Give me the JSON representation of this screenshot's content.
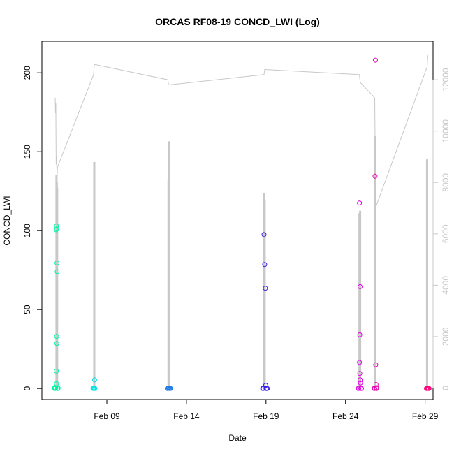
{
  "chart_data": {
    "type": "scatter",
    "title": "ORCAS RF08-19 CONCD_LWI (Log)",
    "xlabel": "Date",
    "ylabel": "CONCD_LWI",
    "xlim": [
      "2018-02-04T22:00",
      "2018-03-01T12:00"
    ],
    "ylim": [
      -7,
      220
    ],
    "y2lim": [
      -450,
      13500
    ],
    "grid": false,
    "legend": "none",
    "x_ticks": [
      {
        "date": "2018-02-09",
        "label": "Feb 09"
      },
      {
        "date": "2018-02-14",
        "label": "Feb 14"
      },
      {
        "date": "2018-02-19",
        "label": "Feb 19"
      },
      {
        "date": "2018-02-24",
        "label": "Feb 24"
      },
      {
        "date": "2018-02-29",
        "label": "Feb 29"
      }
    ],
    "y_ticks": [
      0,
      50,
      100,
      150,
      200
    ],
    "y2_ticks": [
      0,
      2000,
      4000,
      6000,
      8000,
      10000,
      12000
    ],
    "secondary_color": "#c8c8c8",
    "flights": [
      {
        "color": "#00f5a0",
        "points": [
          [
            "2018-02-05T16:30",
            0
          ],
          [
            "2018-02-05T17:00",
            0.5
          ],
          [
            "2018-02-05T18:00",
            0
          ],
          [
            "2018-02-05T19:00",
            0.3
          ],
          [
            "2018-02-05T19:30",
            100.5
          ],
          [
            "2018-02-05T20:00",
            103
          ],
          [
            "2018-02-05T20:30",
            101
          ],
          [
            "2018-02-05T20:45",
            79.5
          ],
          [
            "2018-02-05T21:00",
            74
          ],
          [
            "2018-02-05T20:15",
            33
          ],
          [
            "2018-02-05T20:30",
            28.5
          ],
          [
            "2018-02-05T19:45",
            11
          ],
          [
            "2018-02-05T20:00",
            3
          ],
          [
            "2018-02-05T21:30",
            0
          ],
          [
            "2018-02-05T22:00",
            0
          ],
          [
            "2018-02-05T22:30",
            0.2
          ]
        ]
      },
      {
        "color": "#00e0e6",
        "points": [
          [
            "2018-02-08T03:00",
            0
          ],
          [
            "2018-02-08T04:00",
            0
          ],
          [
            "2018-02-08T05:00",
            0.2
          ],
          [
            "2018-02-08T05:30",
            5.5
          ],
          [
            "2018-02-08T06:00",
            0
          ]
        ]
      },
      {
        "color": "#1e78e6",
        "points": [
          [
            "2018-02-12T19:00",
            0
          ],
          [
            "2018-02-12T20:00",
            0
          ],
          [
            "2018-02-12T21:00",
            0.3
          ],
          [
            "2018-02-12T22:00",
            0
          ],
          [
            "2018-02-12T23:00",
            0
          ],
          [
            "2018-02-13T00:00",
            0
          ]
        ]
      },
      {
        "color": "#3a1ee6",
        "points": [
          [
            "2018-02-18T19:00",
            0
          ],
          [
            "2018-02-18T20:00",
            0
          ],
          [
            "2018-02-18T21:00",
            97.5
          ],
          [
            "2018-02-18T22:00",
            78.5
          ],
          [
            "2018-02-18T23:00",
            63.5
          ],
          [
            "2018-02-18T23:30",
            2
          ],
          [
            "2018-02-19T00:00",
            0
          ],
          [
            "2018-02-19T01:00",
            0
          ],
          [
            "2018-02-19T02:00",
            0
          ]
        ]
      },
      {
        "color": "#e600e6",
        "points": [
          [
            "2018-02-24T19:00",
            0
          ],
          [
            "2018-02-24T20:00",
            0
          ],
          [
            "2018-02-24T21:00",
            117.5
          ],
          [
            "2018-02-24T22:00",
            64.5
          ],
          [
            "2018-02-24T21:30",
            34
          ],
          [
            "2018-02-24T21:00",
            16.5
          ],
          [
            "2018-02-24T21:30",
            9.5
          ],
          [
            "2018-02-24T22:00",
            5.5
          ],
          [
            "2018-02-24T22:30",
            3.5
          ],
          [
            "2018-02-24T23:00",
            0
          ],
          [
            "2018-02-25T00:00",
            0
          ]
        ]
      },
      {
        "color": "#e600b4",
        "points": [
          [
            "2018-02-25T19:00",
            0
          ],
          [
            "2018-02-25T20:00",
            0
          ],
          [
            "2018-02-25T20:30",
            134.5
          ],
          [
            "2018-02-25T21:00",
            208
          ],
          [
            "2018-02-25T21:30",
            15
          ],
          [
            "2018-02-25T22:00",
            2.5
          ],
          [
            "2018-02-25T22:30",
            0.5
          ],
          [
            "2018-02-25T23:00",
            0
          ]
        ]
      },
      {
        "color": "#ff0078",
        "points": [
          [
            "2018-03-01T02:00",
            0
          ],
          [
            "2018-03-01T03:00",
            0
          ],
          [
            "2018-03-01T04:00",
            0
          ],
          [
            "2018-03-01T05:00",
            0
          ],
          [
            "2018-03-01T06:00",
            0
          ]
        ]
      }
    ],
    "secondary_line": [
      [
        "2018-02-05T18:00",
        11300
      ],
      [
        "2018-02-05T18:30",
        10700
      ],
      [
        "2018-02-05T19:00",
        11100
      ],
      [
        "2018-02-05T19:30",
        8700
      ],
      [
        "2018-02-05T20:00",
        9000
      ],
      [
        "2018-02-05T21:00",
        8200
      ],
      [
        "2018-02-05T21:30",
        8600
      ],
      [
        "2018-02-08T04:00",
        12200
      ],
      [
        "2018-02-08T05:00",
        12600
      ],
      [
        "2018-02-12T20:00",
        12000
      ],
      [
        "2018-02-12T21:00",
        11800
      ],
      [
        "2018-02-12T22:00",
        11800
      ],
      [
        "2018-02-18T21:00",
        12200
      ],
      [
        "2018-02-18T22:00",
        12400
      ],
      [
        "2018-02-24T21:00",
        12200
      ],
      [
        "2018-02-24T22:00",
        11900
      ],
      [
        "2018-02-25T20:00",
        11300
      ],
      [
        "2018-02-25T20:30",
        10000
      ],
      [
        "2018-02-25T21:00",
        7000
      ],
      [
        "2018-03-01T03:00",
        12500
      ],
      [
        "2018-03-01T04:00",
        12950
      ]
    ],
    "secondary_spikes": [
      {
        "date": "2018-02-05T20:00",
        "top": 8300
      },
      {
        "date": "2018-02-05T20:30",
        "top": 8000
      },
      {
        "date": "2018-02-05T21:00",
        "top": 7800
      },
      {
        "date": "2018-02-08T05:00",
        "top": 8800
      },
      {
        "date": "2018-02-12T21:00",
        "top": 8100
      },
      {
        "date": "2018-02-12T22:00",
        "top": 9600
      },
      {
        "date": "2018-02-18T21:30",
        "top": 7600
      },
      {
        "date": "2018-02-18T22:00",
        "top": 7300
      },
      {
        "date": "2018-02-24T21:00",
        "top": 6800
      },
      {
        "date": "2018-02-24T22:00",
        "top": 6900
      },
      {
        "date": "2018-02-25T20:30",
        "top": 9800
      },
      {
        "date": "2018-03-01T03:00",
        "top": 8900
      }
    ]
  }
}
